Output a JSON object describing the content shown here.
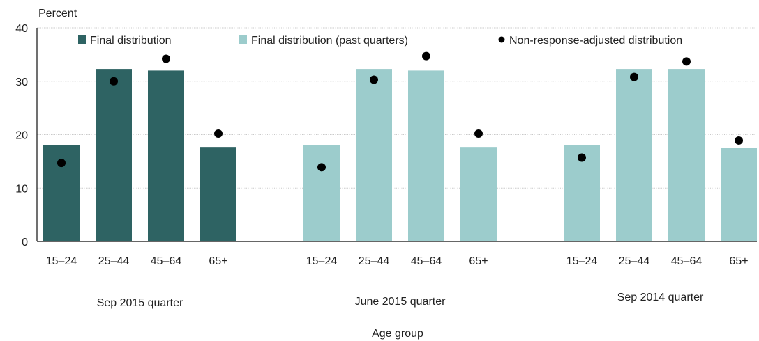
{
  "chart_data": {
    "type": "bar",
    "ylabel": "Percent",
    "xlabel": "Age group",
    "ylim": [
      0,
      40
    ],
    "yticks": [
      0,
      10,
      20,
      30,
      40
    ],
    "grid": true,
    "legend_position": "top",
    "colors": {
      "final": "#2e6363",
      "past": "#9ccccc",
      "marker": "#000000"
    },
    "legend": [
      {
        "label": "Final distribution",
        "kind": "bar",
        "color_key": "final"
      },
      {
        "label": "Final distribution (past quarters)",
        "kind": "bar",
        "color_key": "past"
      },
      {
        "label": "Non-response-adjusted distribution",
        "kind": "dot",
        "color_key": "marker"
      }
    ],
    "groups": [
      {
        "label": "Sep 2015 quarter",
        "color_key": "final",
        "categories": [
          "15–24",
          "25–44",
          "45–64",
          "65+"
        ],
        "final_values": [
          18.0,
          32.3,
          32.0,
          17.7
        ],
        "adjusted_values": [
          14.7,
          30.0,
          34.2,
          20.2
        ]
      },
      {
        "label": "June 2015 quarter",
        "color_key": "past",
        "categories": [
          "15–24",
          "25–44",
          "45–64",
          "65+"
        ],
        "final_values": [
          18.0,
          32.3,
          32.0,
          17.7
        ],
        "adjusted_values": [
          13.9,
          30.3,
          34.7,
          20.2
        ]
      },
      {
        "label": "Sep 2014 quarter",
        "color_key": "past",
        "categories": [
          "15–24",
          "25–44",
          "45–64",
          "65+"
        ],
        "final_values": [
          18.0,
          32.3,
          32.3,
          17.5
        ],
        "adjusted_values": [
          15.7,
          30.8,
          33.7,
          18.9
        ]
      }
    ]
  }
}
